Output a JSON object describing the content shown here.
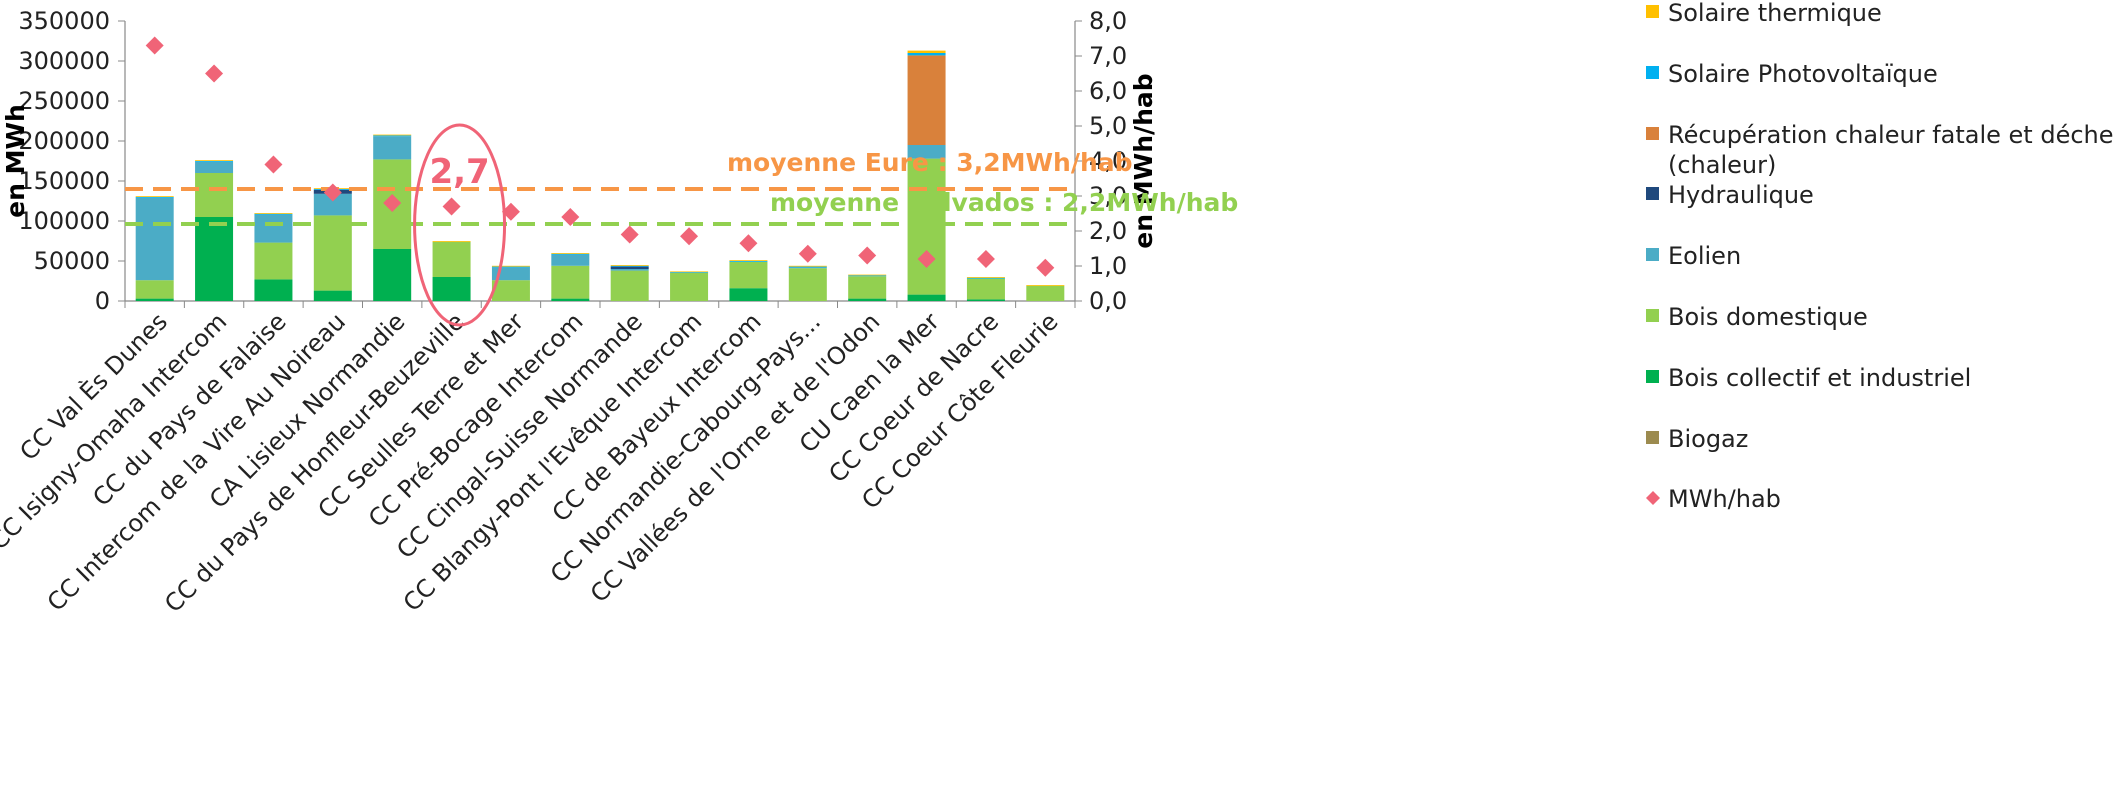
{
  "chart_data": {
    "type": "bar",
    "stacked": true,
    "ylabel": "en MWh",
    "y2label": "en MWh/hab",
    "ylim": [
      0,
      350000
    ],
    "y2lim": [
      0,
      8
    ],
    "yticks": [
      "350000",
      "300000",
      "250000",
      "200000",
      "150000",
      "100000",
      "50000",
      "0"
    ],
    "y2ticks": [
      "8,0",
      "7,0",
      "6,0",
      "5,0",
      "4,0",
      "3,0",
      "2,0",
      "1,0",
      "0,0"
    ],
    "categories": [
      "CC Val Ès Dunes",
      "CC Isigny-Omaha Intercom",
      "CC du Pays de Falaise",
      "CC Intercom de la Vire Au Noireau",
      "CA Lisieux Normandie",
      "CC du Pays de Honfleur-Beuzeville",
      "CC Seulles Terre et Mer",
      "CC Pré-Bocage Intercom",
      "CC Cingal-Suisse Normande",
      "CC Blangy-Pont l'Evêque Intercom",
      "CC de Bayeux Intercom",
      "CC Normandie-Cabourg-Pays...",
      "CC Vallées de l'Orne et de l'Odon",
      "CU Caen la Mer",
      "CC Coeur de Nacre",
      "CC Coeur Côte Fleurie"
    ],
    "series": [
      {
        "name": "Biogaz",
        "color": "#9c8b4f",
        "values": [
          0,
          0,
          0,
          0,
          0,
          0,
          0,
          0,
          0,
          0,
          0,
          0,
          0,
          0,
          0,
          0
        ]
      },
      {
        "name": "Bois collectif et industriel",
        "color": "#00b050",
        "values": [
          3000,
          105000,
          27000,
          13000,
          65000,
          30000,
          0,
          3000,
          0,
          0,
          16000,
          0,
          3000,
          8000,
          2000,
          0
        ]
      },
      {
        "name": "Bois domestique",
        "color": "#92d050",
        "values": [
          23000,
          55000,
          46000,
          94000,
          112000,
          44000,
          26000,
          41000,
          38000,
          35000,
          33000,
          41000,
          28000,
          170000,
          26000,
          19000
        ]
      },
      {
        "name": "Eolien",
        "color": "#4bacc6",
        "values": [
          103000,
          14000,
          35000,
          27000,
          29000,
          0,
          16000,
          14000,
          2000,
          0,
          0,
          1000,
          0,
          17000,
          0,
          0
        ]
      },
      {
        "name": "Hydraulique",
        "color": "#1f497d",
        "values": [
          0,
          0,
          0,
          5000,
          0,
          0,
          0,
          0,
          3000,
          0,
          0,
          0,
          0,
          0,
          0,
          0
        ]
      },
      {
        "name": "Récupération chaleur fatale et déchets (chaleur)",
        "color": "#d9813b",
        "values": [
          0,
          0,
          0,
          0,
          0,
          0,
          0,
          0,
          0,
          0,
          0,
          0,
          0,
          112000,
          0,
          0
        ]
      },
      {
        "name": "Solaire Photovoltaïque",
        "color": "#00b0f0",
        "values": [
          1000,
          1000,
          1000,
          1000,
          1000,
          0,
          1000,
          1000,
          1000,
          1000,
          1000,
          1000,
          1000,
          3000,
          1000,
          0
        ]
      },
      {
        "name": "Solaire thermique",
        "color": "#ffc000",
        "values": [
          1000,
          1000,
          1000,
          1000,
          1000,
          1000,
          1000,
          1000,
          1000,
          1000,
          1000,
          1000,
          1000,
          3000,
          1000,
          1000
        ]
      }
    ],
    "scatter": {
      "name": "MWh/hab",
      "color": "#f06477",
      "axis": "right",
      "values": [
        7.3,
        6.5,
        3.9,
        3.1,
        2.8,
        2.7,
        2.55,
        2.4,
        1.9,
        1.85,
        1.65,
        1.35,
        1.3,
        1.2,
        1.2,
        0.95
      ]
    },
    "reference_lines": [
      {
        "label": "moyenne Eure : 3,2MWh/hab",
        "value": 3.2,
        "color": "#f79646"
      },
      {
        "label": "moyenne Calvados : 2,2MWh/hab",
        "value": 2.2,
        "color": "#92d050"
      }
    ],
    "highlight": {
      "category_index": 5,
      "label": "2,7",
      "color": "#f06477"
    },
    "legend": {
      "placement": "right",
      "order": [
        "Solaire thermique",
        "Solaire Photovoltaïque",
        "Récupération chaleur fatale et déchets (chaleur)",
        "Hydraulique",
        "Eolien",
        "Bois domestique",
        "Bois collectif et industriel",
        "Biogaz",
        "MWh/hab"
      ],
      "labels": {
        "Solaire thermique": [
          "Solaire thermique"
        ],
        "Solaire Photovoltaïque": [
          "Solaire Photovoltaïque"
        ],
        "Récupération chaleur fatale et déchets (chaleur)": [
          "Récupération chaleur fatale et déchets",
          "(chaleur)"
        ],
        "Hydraulique": [
          "Hydraulique"
        ],
        "Eolien": [
          "Eolien"
        ],
        "Bois domestique": [
          "Bois domestique"
        ],
        "Bois collectif et industriel": [
          "Bois collectif et industriel"
        ],
        "Biogaz": [
          "Biogaz"
        ],
        "MWh/hab": [
          "MWh/hab"
        ]
      }
    }
  }
}
